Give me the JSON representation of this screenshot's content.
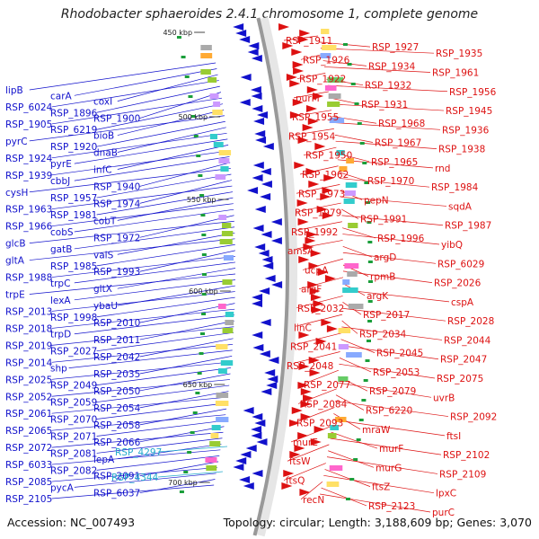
{
  "title": "Rhodobacter sphaeroides 2.4.1 chromosome 1, complete genome",
  "footer": {
    "accession": "Accession: NC_007493",
    "summary": "Topology: circular; Length: 3,188,609 bp; Genes: 3,070"
  },
  "colors": {
    "forward": "#dd1111",
    "reverse": "#1111cc",
    "rna": "#22aacc",
    "backbone": "#999999"
  },
  "positions": [
    "450 kbp",
    "500 kbp",
    "550 kbp",
    "600 kbp",
    "650 kbp",
    "700 kbp"
  ],
  "reverse_labels": [
    "lipB",
    "carA",
    "coxI",
    "RSP_6024",
    "RSP_1896",
    "RSP_1900",
    "RSP_1905",
    "RSP_6219",
    "bioB",
    "pyrC",
    "RSP_1920",
    "dnaB",
    "RSP_1924",
    "pyrE",
    "infC",
    "RSP_1939",
    "cbbJ",
    "RSP_1940",
    "cysH",
    "RSP_1957",
    "RSP_1974",
    "RSP_1963",
    "RSP_1981",
    "cobT",
    "RSP_1966",
    "cobS",
    "RSP_1972",
    "glcB",
    "gatB",
    "valS",
    "gltA",
    "RSP_1985",
    "RSP_1993",
    "RSP_1988",
    "trpC",
    "gltX",
    "trpE",
    "lexA",
    "ybaU",
    "RSP_2013",
    "RSP_1998",
    "RSP_2010",
    "RSP_2018",
    "trpD",
    "RSP_2011",
    "RSP_2019",
    "RSP_2027",
    "RSP_2042",
    "RSP_2014",
    "shp",
    "RSP_2035",
    "RSP_2025",
    "RSP_2049",
    "RSP_2050",
    "RSP_2052",
    "RSP_2059",
    "RSP_2054",
    "RSP_2061",
    "RSP_2070",
    "RSP_2058",
    "RSP_2065",
    "RSP_2071",
    "RSP_2066",
    "RSP_2072",
    "RSP_2081",
    "lepA",
    "RSP_6033",
    "RSP_2082",
    "RSP_2091",
    "RSP_2085",
    "pycA",
    "RSP_6037",
    "RSP_2105"
  ],
  "rna_labels": [
    "RSP_4297",
    "RSP_4344"
  ],
  "forward_labels": [
    "RSP_1911",
    "RSP_1927",
    "RSP_1935",
    "RSP_1926",
    "RSP_1934",
    "RSP_1961",
    "RSP_1922",
    "RSP_1932",
    "RSP_1956",
    "purM",
    "RSP_1931",
    "RSP_1945",
    "RSP_1955",
    "RSP_1968",
    "RSP_1936",
    "RSP_1954",
    "RSP_1967",
    "RSP_1938",
    "RSP_1950",
    "RSP_1965",
    "rnd",
    "RSP_1962",
    "RSP_1970",
    "RSP_1984",
    "RSP_1973",
    "pepN",
    "sqdA",
    "RSP_1979",
    "RSP_1991",
    "RSP_1987",
    "RSP_1992",
    "RSP_1996",
    "yibQ",
    "amsA",
    "argD",
    "RSP_6029",
    "ucpA",
    "rpmB",
    "RSP_2026",
    "argF",
    "argK",
    "cspA",
    "RSP_2032",
    "RSP_2017",
    "RSP_2028",
    "linC",
    "RSP_2034",
    "RSP_2044",
    "RSP_2041",
    "RSP_2045",
    "RSP_2047",
    "RSP_2048",
    "RSP_2053",
    "RSP_2075",
    "RSP_2077",
    "RSP_2079",
    "uvrB",
    "RSP_2084",
    "RSP_6220",
    "RSP_2092",
    "RSP_2093",
    "mraW",
    "ftsI",
    "murE",
    "murF",
    "RSP_2102",
    "ftsW",
    "murG",
    "RSP_2109",
    "ftsQ",
    "ftsZ",
    "lpxC",
    "recN",
    "RSP_2123",
    "purC"
  ]
}
